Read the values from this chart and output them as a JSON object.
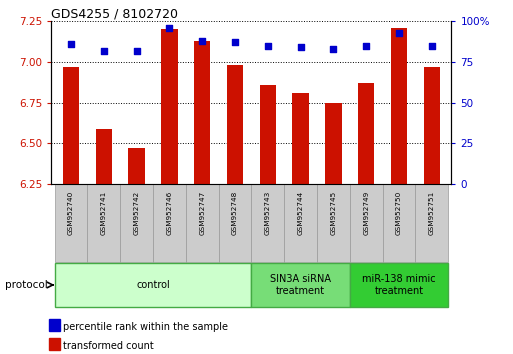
{
  "title": "GDS4255 / 8102720",
  "samples": [
    "GSM952740",
    "GSM952741",
    "GSM952742",
    "GSM952746",
    "GSM952747",
    "GSM952748",
    "GSM952743",
    "GSM952744",
    "GSM952745",
    "GSM952749",
    "GSM952750",
    "GSM952751"
  ],
  "transformed_counts": [
    6.97,
    6.59,
    6.47,
    7.2,
    7.13,
    6.98,
    6.86,
    6.81,
    6.75,
    6.87,
    7.21,
    6.97
  ],
  "percentile_ranks": [
    86,
    82,
    82,
    96,
    88,
    87,
    85,
    84,
    83,
    85,
    93,
    85
  ],
  "ylim_left": [
    6.25,
    7.25
  ],
  "ylim_right": [
    0,
    100
  ],
  "yticks_left": [
    6.25,
    6.5,
    6.75,
    7.0,
    7.25
  ],
  "yticks_right": [
    0,
    25,
    50,
    75,
    100
  ],
  "ytick_labels_right": [
    "0",
    "25",
    "50",
    "75",
    "100%"
  ],
  "bar_color": "#cc1100",
  "dot_color": "#0000cc",
  "bar_width": 0.5,
  "groups": [
    {
      "label": "control",
      "start": 0,
      "end": 6,
      "color": "#ccffcc",
      "border_color": "#44aa44"
    },
    {
      "label": "SIN3A siRNA\ntreatment",
      "start": 6,
      "end": 9,
      "color": "#77dd77",
      "border_color": "#44aa44"
    },
    {
      "label": "miR-138 mimic\ntreatment",
      "start": 9,
      "end": 12,
      "color": "#33cc33",
      "border_color": "#44aa44"
    }
  ],
  "protocol_label": "protocol",
  "legend_items": [
    {
      "label": "transformed count",
      "color": "#cc1100"
    },
    {
      "label": "percentile rank within the sample",
      "color": "#0000cc"
    }
  ],
  "background_color": "#ffffff",
  "tick_color_left": "#cc1100",
  "tick_color_right": "#0000cc",
  "sample_box_color": "#cccccc",
  "sample_box_edge": "#999999"
}
